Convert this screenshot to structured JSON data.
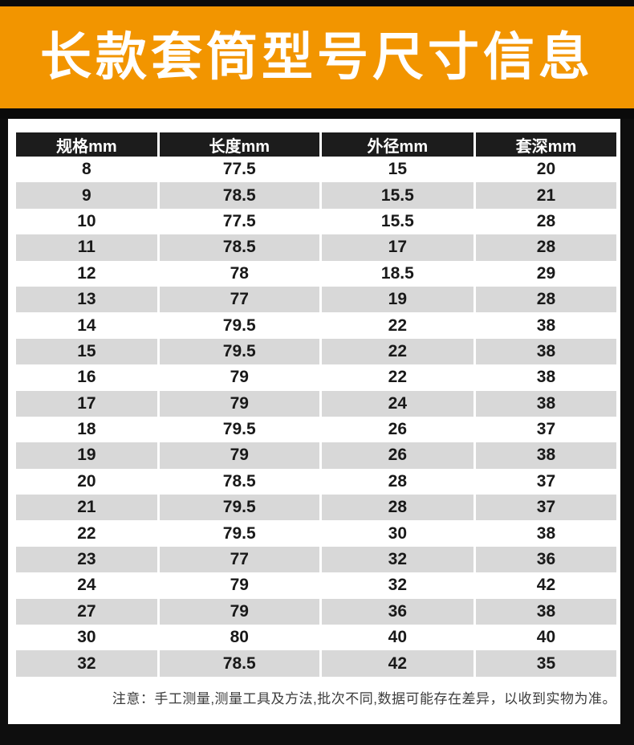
{
  "banner": {
    "title": "长款套筒型号尺寸信息"
  },
  "colors": {
    "banner_bg": "#F29500",
    "banner_text": "#FFFFFF",
    "page_bg": "#0E0E0E",
    "table_header_bg": "#1C1C1C",
    "table_header_text": "#FFFFFF",
    "row_alt_bg": "#D8D8D8",
    "cell_text": "#191919",
    "note_text": "#3C3C3C"
  },
  "table": {
    "columns": [
      "规格mm",
      "长度mm",
      "外径mm",
      "套深mm"
    ],
    "rows": [
      [
        "8",
        "77.5",
        "15",
        "20"
      ],
      [
        "9",
        "78.5",
        "15.5",
        "21"
      ],
      [
        "10",
        "77.5",
        "15.5",
        "28"
      ],
      [
        "11",
        "78.5",
        "17",
        "28"
      ],
      [
        "12",
        "78",
        "18.5",
        "29"
      ],
      [
        "13",
        "77",
        "19",
        "28"
      ],
      [
        "14",
        "79.5",
        "22",
        "38"
      ],
      [
        "15",
        "79.5",
        "22",
        "38"
      ],
      [
        "16",
        "79",
        "22",
        "38"
      ],
      [
        "17",
        "79",
        "24",
        "38"
      ],
      [
        "18",
        "79.5",
        "26",
        "37"
      ],
      [
        "19",
        "79",
        "26",
        "38"
      ],
      [
        "20",
        "78.5",
        "28",
        "37"
      ],
      [
        "21",
        "79.5",
        "28",
        "37"
      ],
      [
        "22",
        "79.5",
        "30",
        "38"
      ],
      [
        "23",
        "77",
        "32",
        "36"
      ],
      [
        "24",
        "79",
        "32",
        "42"
      ],
      [
        "27",
        "79",
        "36",
        "38"
      ],
      [
        "30",
        "80",
        "40",
        "40"
      ],
      [
        "32",
        "78.5",
        "42",
        "35"
      ]
    ]
  },
  "note": "注意：手工测量,测量工具及方法,批次不同,数据可能存在差异，以收到实物为准。"
}
